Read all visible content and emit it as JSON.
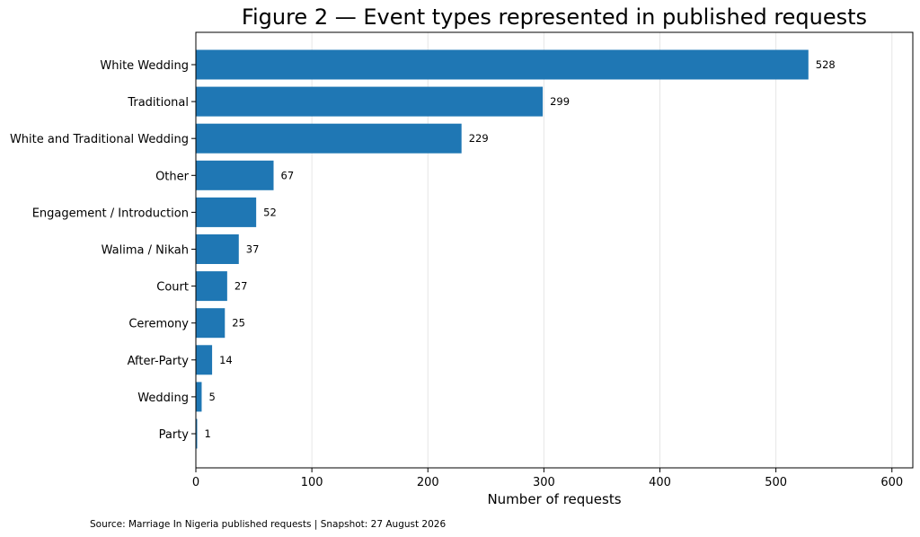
{
  "chart_data": {
    "type": "bar",
    "orientation": "horizontal",
    "title": "Figure 2 — Event types represented in published requests",
    "xlabel": "Number of requests",
    "ylabel": "",
    "categories": [
      "White Wedding",
      "Traditional",
      "White and Traditional Wedding",
      "Other",
      "Engagement / Introduction",
      "Walima / Nikah",
      "Court",
      "Ceremony",
      "After-Party",
      "Wedding",
      "Party"
    ],
    "values": [
      528,
      299,
      229,
      67,
      52,
      37,
      27,
      25,
      14,
      5,
      1
    ],
    "data_labels": [
      "528",
      "299",
      "229",
      "67",
      "52",
      "37",
      "27",
      "25",
      "14",
      "5",
      "1"
    ],
    "xlim": [
      0,
      618
    ],
    "xticks": [
      0,
      100,
      200,
      300,
      400,
      500,
      600
    ],
    "xtick_labels": [
      "0",
      "100",
      "200",
      "300",
      "400",
      "500",
      "600"
    ],
    "grid": "vertical",
    "bar_color": "#1f77b4",
    "footnote": "Source: Marriage In Nigeria published requests | Snapshot: 27 August 2026"
  }
}
